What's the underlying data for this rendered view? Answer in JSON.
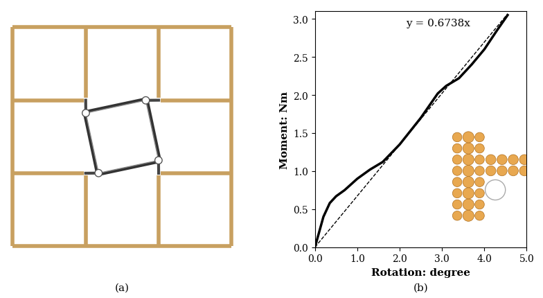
{
  "chart_data": {
    "type": "line",
    "xlabel": "Rotation: degree",
    "ylabel": "Moment: Nm",
    "xlim": [
      0,
      5
    ],
    "ylim": [
      0,
      3.1
    ],
    "xticks": [
      {
        "value": 0,
        "label": "0.0"
      },
      {
        "value": 1,
        "label": "1.0"
      },
      {
        "value": 2,
        "label": "2.0"
      },
      {
        "value": 3,
        "label": "3.0"
      },
      {
        "value": 4,
        "label": "4.0"
      },
      {
        "value": 5,
        "label": "5.0"
      }
    ],
    "yticks": [
      {
        "value": 0,
        "label": "0.0"
      },
      {
        "value": 0.5,
        "label": "0.5"
      },
      {
        "value": 1,
        "label": "1.0"
      },
      {
        "value": 1.5,
        "label": "1.5"
      },
      {
        "value": 2,
        "label": "2.0"
      },
      {
        "value": 2.5,
        "label": "2.5"
      },
      {
        "value": 3,
        "label": "3.0"
      }
    ],
    "grid": false,
    "annotations": [
      "y = 0.6738x"
    ],
    "series": [
      {
        "color": "#000000",
        "line_style": "solid",
        "x": [
          0,
          0.1,
          0.2,
          0.35,
          0.5,
          0.7,
          1.0,
          1.3,
          1.6,
          2.0,
          2.5,
          2.9,
          3.1,
          3.4,
          3.7,
          4.0,
          4.3,
          4.55
        ],
        "values": [
          0,
          0.2,
          0.4,
          0.58,
          0.67,
          0.75,
          0.9,
          1.02,
          1.12,
          1.35,
          1.7,
          2.02,
          2.12,
          2.22,
          2.4,
          2.6,
          2.85,
          3.05
        ]
      },
      {
        "color": "#000000",
        "line_style": "dashed",
        "x": [
          0,
          4.55
        ],
        "values": [
          0,
          3.066
        ]
      }
    ]
  },
  "captions": [
    "(a)",
    "(b)"
  ]
}
